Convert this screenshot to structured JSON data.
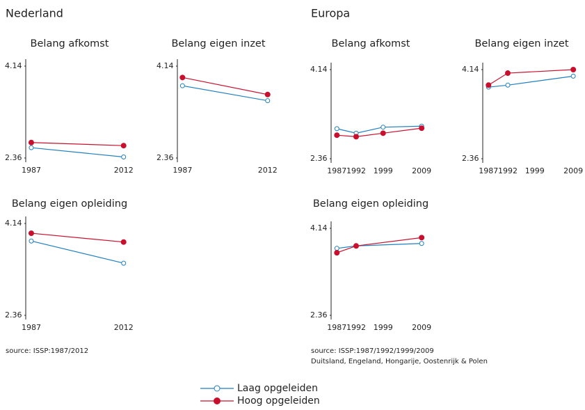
{
  "headings": [
    "Nederland",
    "Europa"
  ],
  "sources": [
    "source: ISSP:1987/2012",
    "source: ISSP:1987/1992/1999/2009",
    "Duitsland, Engeland, Hongarije, Oostenrijk & Polen"
  ],
  "chart_data": [
    {
      "type": "line",
      "title": "Belang afkomst",
      "x": [
        1987,
        2012
      ],
      "xlim": [
        1985.5,
        2014.5
      ],
      "xticks": [
        1987,
        2012
      ],
      "ylim": [
        2.36,
        4.14
      ],
      "yticks": [
        2.36,
        4.14
      ],
      "series": [
        {
          "name": "Laag opgeleiden",
          "color": "#1f7fc0",
          "marker": "open-circle",
          "values": [
            2.56,
            2.38
          ]
        },
        {
          "name": "Hoog opgeleiden",
          "color": "#c8102e",
          "marker": "filled-circle",
          "values": [
            2.66,
            2.6
          ]
        }
      ]
    },
    {
      "type": "line",
      "title": "Belang eigen inzet",
      "x": [
        1987,
        2012
      ],
      "xlim": [
        1985.5,
        2014.5
      ],
      "xticks": [
        1987,
        2012
      ],
      "ylim": [
        2.36,
        4.14
      ],
      "yticks": [
        2.36,
        4.14
      ],
      "series": [
        {
          "name": "Laag opgeleiden",
          "color": "#1f7fc0",
          "marker": "open-circle",
          "values": [
            3.76,
            3.47
          ]
        },
        {
          "name": "Hoog opgeleiden",
          "color": "#c8102e",
          "marker": "filled-circle",
          "values": [
            3.92,
            3.59
          ]
        }
      ]
    },
    {
      "type": "line",
      "title": "Belang afkomst",
      "x": [
        1987,
        1992,
        1999,
        2009
      ],
      "xlim": [
        1985.5,
        2011.5
      ],
      "xticks": [
        1987,
        1992,
        1999,
        2009
      ],
      "ylim": [
        2.36,
        4.14
      ],
      "yticks": [
        2.36,
        4.14
      ],
      "series": [
        {
          "name": "Laag opgeleiden",
          "color": "#1f7fc0",
          "marker": "open-circle",
          "values": [
            2.96,
            2.87,
            2.99,
            3.01
          ]
        },
        {
          "name": "Hoog opgeleiden",
          "color": "#c8102e",
          "marker": "filled-circle",
          "values": [
            2.83,
            2.8,
            2.87,
            2.97
          ]
        }
      ]
    },
    {
      "type": "line",
      "title": "Belang eigen inzet",
      "x": [
        1987,
        1992,
        2009
      ],
      "xlim": [
        1985.5,
        2011.5
      ],
      "xticks": [
        1987,
        1992,
        1999,
        2009
      ],
      "ylim": [
        2.36,
        4.14
      ],
      "yticks": [
        2.36,
        4.14
      ],
      "series": [
        {
          "name": "Laag opgeleiden",
          "color": "#1f7fc0",
          "marker": "open-circle",
          "values": [
            3.79,
            3.83,
            4.01
          ]
        },
        {
          "name": "Hoog opgeleiden",
          "color": "#c8102e",
          "marker": "filled-circle",
          "values": [
            3.83,
            4.07,
            4.14
          ]
        }
      ]
    },
    {
      "type": "line",
      "title": "Belang eigen opleiding",
      "x": [
        1987,
        2012
      ],
      "xlim": [
        1985.5,
        2014.5
      ],
      "xticks": [
        1987,
        2012
      ],
      "ylim": [
        2.36,
        4.14
      ],
      "yticks": [
        2.36,
        4.14
      ],
      "series": [
        {
          "name": "Laag opgeleiden",
          "color": "#1f7fc0",
          "marker": "open-circle",
          "values": [
            3.8,
            3.37
          ]
        },
        {
          "name": "Hoog opgeleiden",
          "color": "#c8102e",
          "marker": "filled-circle",
          "values": [
            3.95,
            3.78
          ]
        }
      ]
    },
    {
      "type": "line",
      "title": "Belang eigen opleiding",
      "x": [
        1987,
        1992,
        2009
      ],
      "xlim": [
        1985.5,
        2011.5
      ],
      "xticks": [
        1987,
        1992,
        1999,
        2009
      ],
      "ylim": [
        2.36,
        4.14
      ],
      "yticks": [
        2.36,
        4.14
      ],
      "series": [
        {
          "name": "Laag opgeleiden",
          "color": "#1f7fc0",
          "marker": "open-circle",
          "values": [
            3.73,
            3.78,
            3.83
          ]
        },
        {
          "name": "Hoog opgeleiden",
          "color": "#c8102e",
          "marker": "filled-circle",
          "values": [
            3.64,
            3.78,
            3.95
          ]
        }
      ]
    }
  ]
}
